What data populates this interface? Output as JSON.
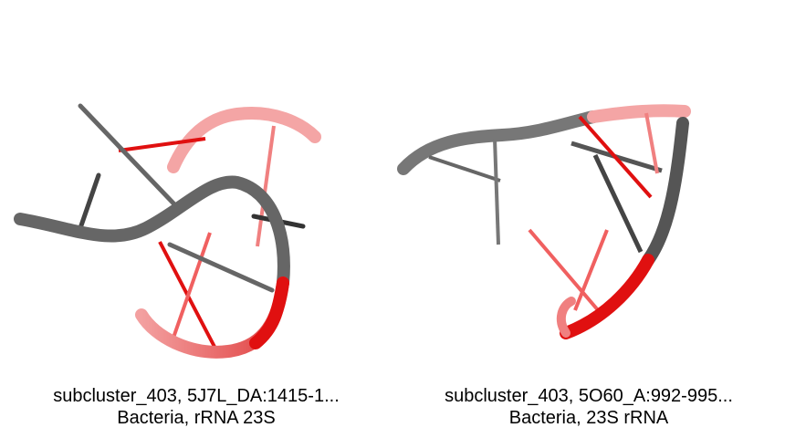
{
  "panels": [
    {
      "title": "subcluster_403, 5J7L_DA:1415-1...",
      "subtitle": "Bacteria, rRNA 23S"
    },
    {
      "title": "subcluster_403, 5O60_A:992-995...",
      "subtitle": "Bacteria, 23S rRNA"
    }
  ],
  "colors": {
    "backbone_gray": "#666666",
    "backbone_dark": "#444444",
    "highlight_red": "#e01010",
    "faded_red": "#f08080",
    "background": "#ffffff"
  }
}
